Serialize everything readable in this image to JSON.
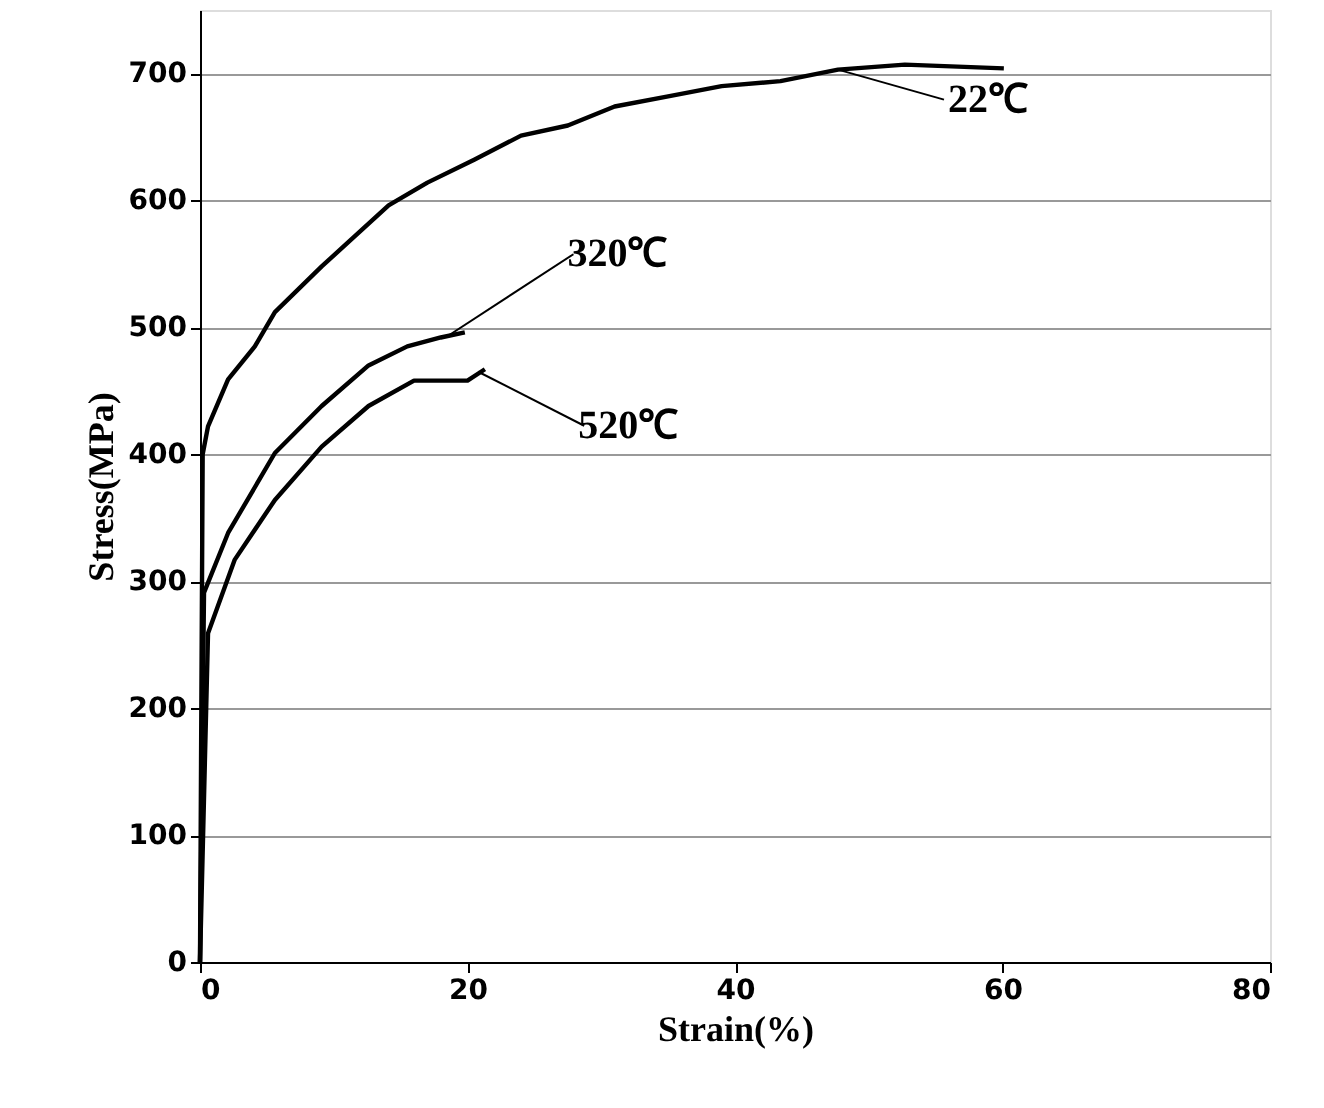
{
  "chart_data": {
    "type": "line",
    "xlabel": "Strain(%)",
    "ylabel": "Stress(MPa)",
    "xlim": [
      0,
      80
    ],
    "ylim": [
      0,
      750
    ],
    "xticks": [
      0,
      20,
      40,
      60,
      80
    ],
    "yticks": [
      0,
      100,
      200,
      300,
      400,
      500,
      600,
      700
    ],
    "grid": "y",
    "marker": "none",
    "line_style": "solid",
    "series": [
      {
        "color": "#000000",
        "x": [
          0,
          0.2,
          0.6,
          2.1,
          4.1,
          5.6,
          9.1,
          11.6,
          14.1,
          17.0,
          20.5,
          24.0,
          27.5,
          31.0,
          35.0,
          39.0,
          43.4,
          47.7,
          52.7,
          60.1
        ],
        "values": [
          0,
          400,
          422,
          459,
          485,
          512,
          548,
          572,
          596,
          614,
          632,
          651,
          659,
          674,
          682,
          690,
          694,
          703,
          707,
          704
        ]
      },
      {
        "color": "#000000",
        "x": [
          0,
          0.3,
          2.1,
          5.6,
          9.1,
          12.6,
          15.5,
          18.0,
          19.8
        ],
        "values": [
          0,
          291,
          338,
          401,
          438,
          470,
          485,
          492,
          496
        ]
      },
      {
        "color": "#000000",
        "x": [
          0,
          0.6,
          2.6,
          5.6,
          9.1,
          12.6,
          16.0,
          20.0,
          21.3
        ],
        "values": [
          0,
          259,
          317,
          364,
          406,
          438,
          458,
          458,
          467
        ]
      }
    ],
    "annotations": [
      {
        "text": "22℃",
        "x": 47.7,
        "y": 703
      },
      {
        "text": "320℃",
        "x": 18.5,
        "y": 493
      },
      {
        "text": "520℃",
        "x": 20.8,
        "y": 465
      }
    ]
  }
}
